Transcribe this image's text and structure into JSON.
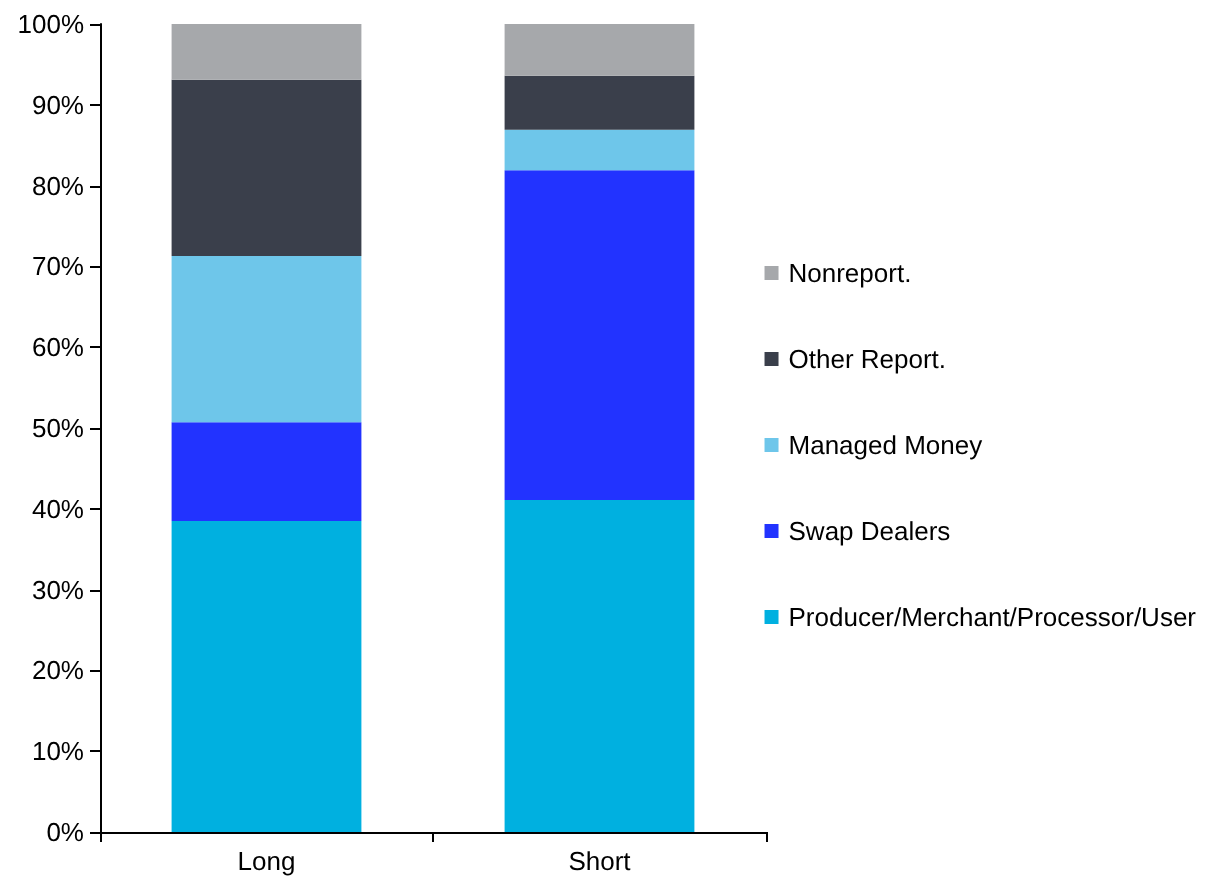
{
  "chart_data": {
    "type": "bar",
    "stacked": true,
    "categories": [
      "Long",
      "Short"
    ],
    "series": [
      {
        "name": "Producer/Merchant/Processor/User",
        "color": "#00b0e0",
        "values": [
          38.5,
          41.1
        ]
      },
      {
        "name": "Swap Dealers",
        "color": "#2233ff",
        "values": [
          12.2,
          40.8
        ]
      },
      {
        "name": "Managed Money",
        "color": "#6ec6ea",
        "values": [
          20.6,
          5.0
        ]
      },
      {
        "name": "Other Report.",
        "color": "#3a3f4b",
        "values": [
          21.8,
          6.7
        ]
      },
      {
        "name": "Nonreport.",
        "color": "#a6a8ab",
        "values": [
          6.9,
          6.4
        ]
      }
    ],
    "ylim": [
      0,
      100
    ],
    "yticks": [
      {
        "value": 0,
        "label": "0%"
      },
      {
        "value": 10,
        "label": "10%"
      },
      {
        "value": 20,
        "label": "20%"
      },
      {
        "value": 30,
        "label": "30%"
      },
      {
        "value": 40,
        "label": "40%"
      },
      {
        "value": 50,
        "label": "50%"
      },
      {
        "value": 60,
        "label": "60%"
      },
      {
        "value": 70,
        "label": "70%"
      },
      {
        "value": 80,
        "label": "80%"
      },
      {
        "value": 90,
        "label": "90%"
      },
      {
        "value": 100,
        "label": "100%"
      }
    ],
    "grid": false,
    "legend": "right"
  }
}
